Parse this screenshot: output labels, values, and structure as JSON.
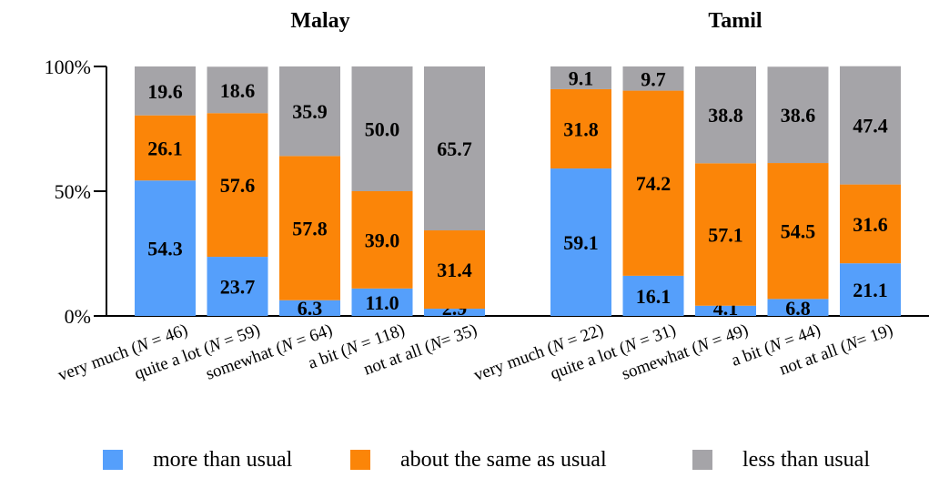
{
  "colors": {
    "more": "#559ffb",
    "same": "#fb8508",
    "less": "#a5a4a8"
  },
  "legend": [
    {
      "key": "more",
      "label": "more than usual"
    },
    {
      "key": "same",
      "label": "about the same as usual"
    },
    {
      "key": "less",
      "label": "less than usual"
    }
  ],
  "chart_data": [
    {
      "type": "bar",
      "stacked": true,
      "title": "Malay",
      "ylim": [
        0,
        100
      ],
      "yticks": [
        "0%",
        "50%",
        "100%"
      ],
      "categories": [
        "very much (N = 46)",
        "quite a lot (N = 59)",
        "somewhat (N = 64)",
        "a bit (N = 118)",
        "not at all (N= 35)"
      ],
      "series": [
        {
          "name": "more than usual",
          "key": "more",
          "values": [
            54.3,
            23.7,
            6.3,
            11.0,
            2.9
          ]
        },
        {
          "name": "about the same as usual",
          "key": "same",
          "values": [
            26.1,
            57.6,
            57.8,
            39.0,
            31.4
          ]
        },
        {
          "name": "less than usual",
          "key": "less",
          "values": [
            19.6,
            18.6,
            35.9,
            50.0,
            65.7
          ]
        }
      ],
      "labels": [
        [
          "54.3",
          "23.7",
          "6.3",
          "11.0",
          "2.9"
        ],
        [
          "26.1",
          "57.6",
          "57.8",
          "39.0",
          "31.4"
        ],
        [
          "19.6",
          "18.6",
          "35.9",
          "50.0",
          "65.7"
        ]
      ]
    },
    {
      "type": "bar",
      "stacked": true,
      "title": "Tamil",
      "ylim": [
        0,
        100
      ],
      "categories": [
        "very much (N = 22)",
        "quite a lot (N = 31)",
        "somewhat (N = 49)",
        "a bit (N = 44)",
        "not at all (N= 19)"
      ],
      "series": [
        {
          "name": "more than usual",
          "key": "more",
          "values": [
            59.1,
            16.1,
            4.1,
            6.8,
            21.1
          ]
        },
        {
          "name": "about the same as usual",
          "key": "same",
          "values": [
            31.8,
            74.2,
            57.1,
            54.5,
            31.6
          ]
        },
        {
          "name": "less than usual",
          "key": "less",
          "values": [
            9.1,
            9.7,
            38.8,
            38.6,
            47.4
          ]
        }
      ],
      "labels": [
        [
          "59.1",
          "16.1",
          "4.1",
          "6.8",
          "21.1"
        ],
        [
          "31.8",
          "74.2",
          "57.1",
          "54.5",
          "31.6"
        ],
        [
          "9.1",
          "9.7",
          "38.8",
          "38.6",
          "47.4"
        ]
      ]
    }
  ]
}
